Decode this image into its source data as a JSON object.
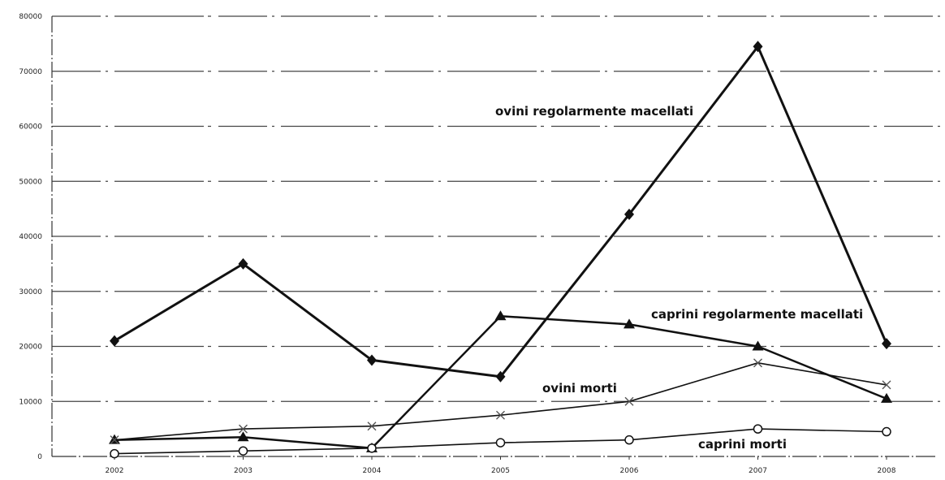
{
  "chart_data": {
    "type": "line",
    "title": "",
    "xlabel": "",
    "ylabel": "",
    "categories": [
      "2002",
      "2003",
      "2004",
      "2005",
      "2006",
      "2007",
      "2008"
    ],
    "ylim": [
      0,
      80000
    ],
    "yticks": [
      "0",
      "10000",
      "20000",
      "30000",
      "40000",
      "50000",
      "60000",
      "70000",
      "80000"
    ],
    "grid": true,
    "legend": "inline labels",
    "series": [
      {
        "name": "ovini regolarmente macellati",
        "marker": "diamond",
        "values": [
          21000,
          35000,
          17500,
          14500,
          44000,
          74500,
          20500
        ]
      },
      {
        "name": "caprini regolarmente macellati",
        "marker": "triangle",
        "values": [
          3000,
          3500,
          1500,
          25500,
          24000,
          20000,
          10500
        ]
      },
      {
        "name": "ovini morti",
        "marker": "cross",
        "values": [
          3000,
          5000,
          5500,
          7500,
          10000,
          17000,
          13000
        ]
      },
      {
        "name": "caprini morti",
        "marker": "circle",
        "values": [
          500,
          1000,
          1500,
          2500,
          3000,
          5000,
          4500
        ]
      }
    ]
  }
}
